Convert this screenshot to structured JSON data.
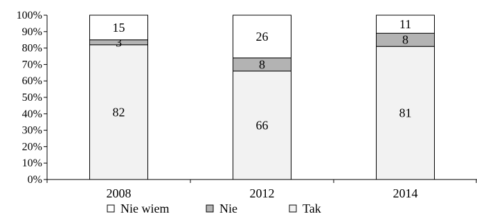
{
  "chart_data": {
    "type": "bar",
    "stacked": true,
    "normalized": true,
    "categories": [
      "2008",
      "2012",
      "2014"
    ],
    "series": [
      {
        "name": "Tak",
        "values": [
          82,
          66,
          81
        ],
        "color": "#f2f2f2"
      },
      {
        "name": "Nie",
        "values": [
          3,
          8,
          8
        ],
        "color": "#b3b3b3"
      },
      {
        "name": "Nie wiem",
        "values": [
          15,
          26,
          11
        ],
        "color": "#ffffff"
      }
    ],
    "data_labels": [
      [
        "82",
        "66",
        "81"
      ],
      [
        "3",
        "8",
        "8"
      ],
      [
        "15",
        "26",
        "11"
      ]
    ],
    "yticks": [
      "0%",
      "10%",
      "20%",
      "30%",
      "40%",
      "50%",
      "60%",
      "70%",
      "80%",
      "90%",
      "100%"
    ],
    "ylim": [
      0,
      100
    ],
    "title": "",
    "xlabel": "",
    "ylabel": "",
    "grid": false,
    "legend_position": "bottom",
    "legend": [
      "Nie wiem",
      "Nie",
      "Tak"
    ]
  }
}
